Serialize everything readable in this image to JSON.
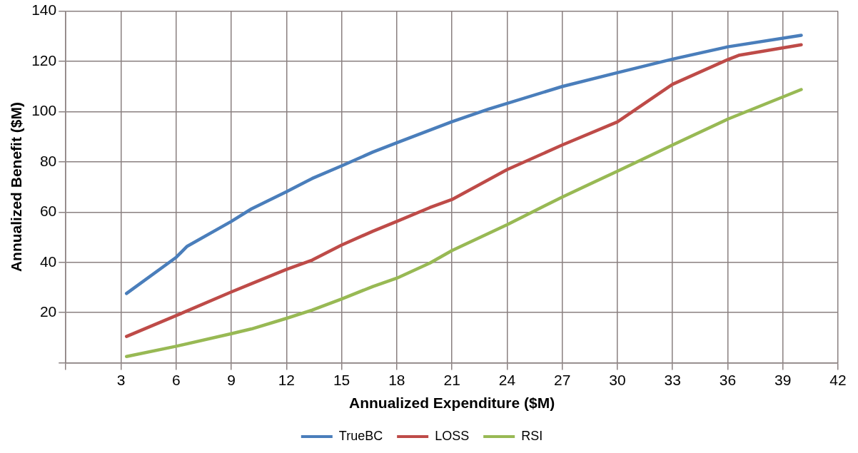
{
  "chart_data": {
    "type": "line",
    "xlabel": "Annualized Expenditure ($M)",
    "ylabel": "Annualized Benefit ($M)",
    "xlim": [
      0,
      42
    ],
    "xticks": [
      {
        "value": 0,
        "label": null
      },
      3,
      6,
      9,
      12,
      15,
      18,
      21,
      24,
      27,
      30,
      33,
      36,
      39,
      42
    ],
    "ylim": [
      0,
      140
    ],
    "yticks": [
      {
        "value": 0,
        "label": null
      },
      20,
      40,
      60,
      80,
      100,
      120,
      140
    ],
    "grid": true,
    "legend": "bottom",
    "marker": "none",
    "line_style": "solid",
    "series": [
      {
        "name": "TrueBC",
        "color": "#4a7ebb",
        "x": [
          3.3,
          6,
          6.6,
          9,
          10.1,
          12,
          13.4,
          15,
          16.7,
          18,
          21,
          23,
          27,
          30,
          33,
          36,
          40
        ],
        "values": [
          27.6,
          42,
          46.4,
          56.3,
          61.3,
          68.1,
          73.4,
          78.4,
          83.9,
          87.6,
          96,
          101,
          110,
          115.5,
          120.9,
          125.8,
          130.4
        ]
      },
      {
        "name": "LOSS",
        "color": "#be4b48",
        "x": [
          3.3,
          6,
          9,
          10.1,
          12,
          13.4,
          15,
          16.7,
          18,
          19.8,
          21,
          24,
          27,
          30,
          33,
          36,
          36.6,
          40
        ],
        "values": [
          10.5,
          18.8,
          28.2,
          31.5,
          37.2,
          40.9,
          46.9,
          52.4,
          56.3,
          61.8,
          65,
          76.9,
          86.7,
          95.9,
          110.9,
          120.7,
          122.4,
          126.6
        ]
      },
      {
        "name": "RSI",
        "color": "#98b954",
        "x": [
          3.3,
          6,
          9,
          10.1,
          12,
          13.4,
          15,
          16.7,
          18,
          19.8,
          21,
          24,
          27,
          30,
          33,
          36,
          40
        ],
        "values": [
          2.5,
          6.6,
          11.6,
          13.5,
          17.7,
          21,
          25.4,
          30.4,
          33.7,
          39.7,
          44.7,
          55,
          66,
          76.3,
          86.7,
          97,
          108.8
        ]
      }
    ]
  }
}
